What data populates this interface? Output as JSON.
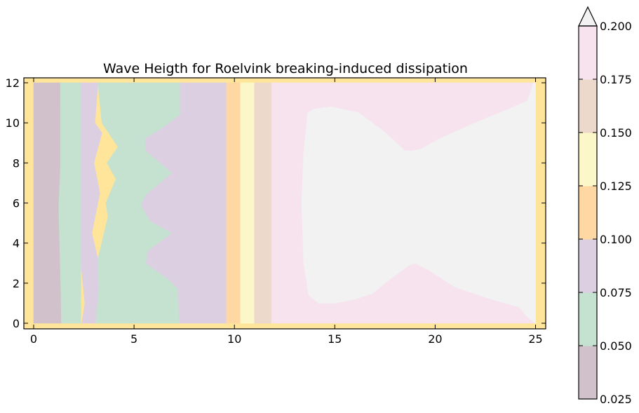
{
  "chart_data": {
    "type": "heatmap",
    "subtype": "filled-contour",
    "title": "Wave Heigth for Roelvink breaking-induced dissipation",
    "xlabel": "",
    "ylabel": "",
    "xlim": [
      -0.5,
      25.5
    ],
    "ylim": [
      -0.3,
      12.25
    ],
    "xticks": [
      0,
      5,
      10,
      15,
      20,
      25
    ],
    "yticks": [
      0,
      2,
      4,
      6,
      8,
      10,
      12
    ],
    "colorbar": {
      "levels": [
        0.025,
        0.05,
        0.075,
        0.1,
        0.125,
        0.15,
        0.175,
        0.2
      ],
      "tick_labels": [
        "0.025",
        "0.050",
        "0.075",
        "0.100",
        "0.125",
        "0.150",
        "0.175",
        "0.200"
      ],
      "colors": [
        "#d1c1ca",
        "#c4e2cf",
        "#dccfe2",
        "#ffd7a2",
        "#fcf7c8",
        "#ecd9cc",
        "#f6e3ee",
        "#f2f2f2"
      ],
      "extend": "max"
    },
    "outside_color": "#ffe599",
    "regions": [
      {
        "level_index": 0,
        "x_range": [
          0.0,
          1.3
        ],
        "y_range": [
          0,
          12
        ]
      },
      {
        "level_index": 1,
        "x_range": [
          1.3,
          2.4
        ],
        "y_range": [
          0,
          12
        ],
        "note": "varies with y"
      },
      {
        "level_index": 2,
        "x_range": [
          2.4,
          3.3
        ],
        "y_range": [
          0,
          12
        ],
        "note": "wavy in y"
      },
      {
        "level_index": 1,
        "x_range": [
          3.3,
          7.2
        ],
        "y_range": [
          0,
          12
        ],
        "note": "zigzag boundary"
      },
      {
        "level_index": 2,
        "x_range": [
          7.2,
          9.6
        ],
        "y_range": [
          0,
          12
        ]
      },
      {
        "level_index": 3,
        "x_range": [
          9.6,
          10.3
        ],
        "y_range": [
          0,
          12
        ]
      },
      {
        "level_index": 4,
        "x_range": [
          10.3,
          11.0
        ],
        "y_range": [
          0,
          12
        ]
      },
      {
        "level_index": 5,
        "x_range": [
          11.0,
          11.9
        ],
        "y_range": [
          0,
          12
        ]
      },
      {
        "level_index": 6,
        "x_range": [
          11.9,
          25.0
        ],
        "y_range": [
          0,
          12
        ]
      },
      {
        "level_index": 7,
        "x_range": [
          13.0,
          25.0
        ],
        "y_range": [
          0,
          12
        ],
        "note": "above max, waisted shape"
      }
    ]
  }
}
